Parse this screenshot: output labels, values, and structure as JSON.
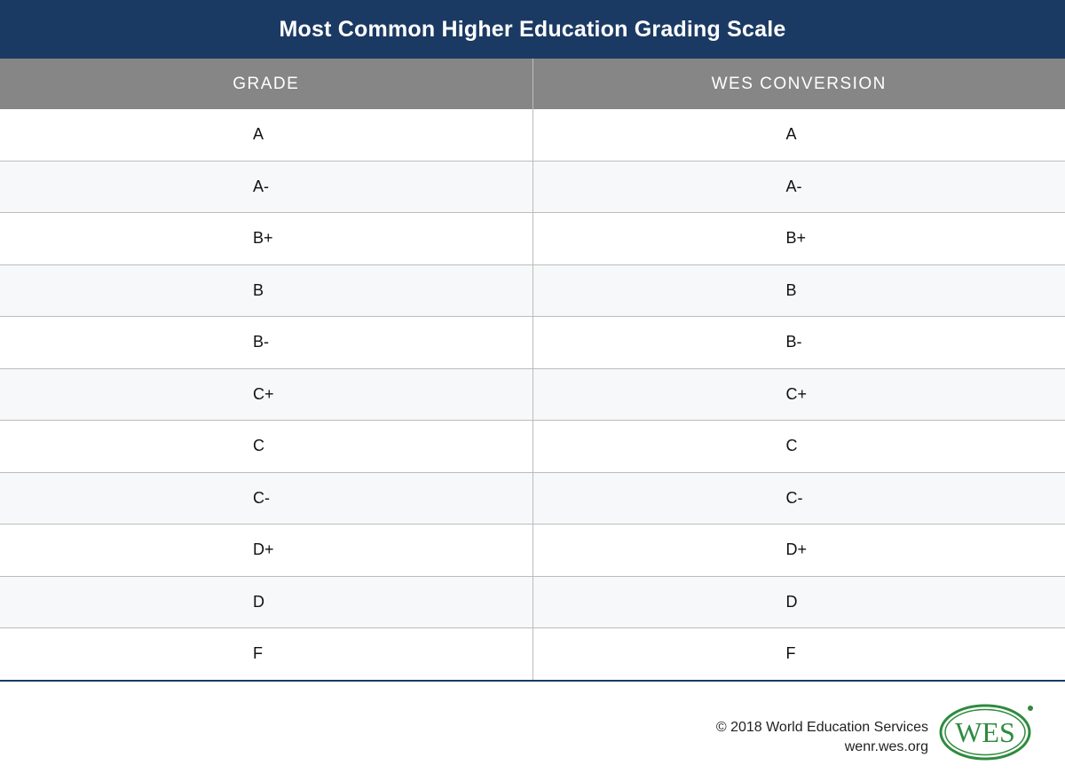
{
  "title": "Most Common Higher Education Grading Scale",
  "columns": [
    "GRADE",
    "WES CONVERSION"
  ],
  "rows": [
    [
      "A",
      "A"
    ],
    [
      "A-",
      "A-"
    ],
    [
      "B+",
      "B+"
    ],
    [
      "B",
      "B"
    ],
    [
      "B-",
      "B-"
    ],
    [
      "C+",
      "C+"
    ],
    [
      "C",
      "C"
    ],
    [
      "C-",
      "C-"
    ],
    [
      "D+",
      "D+"
    ],
    [
      "D",
      "D"
    ],
    [
      "F",
      "F"
    ]
  ],
  "footer": {
    "copyright": "© 2018 World Education Services",
    "url": "wenr.wes.org"
  },
  "logo": {
    "text": "WES",
    "color": "#2e8b3e"
  },
  "colors": {
    "title_bg": "#1b3a63",
    "header_bg": "#868686"
  }
}
